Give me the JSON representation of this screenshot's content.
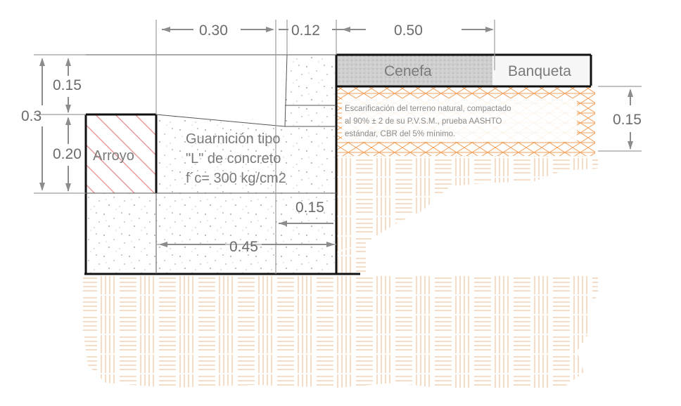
{
  "dimensions": {
    "top_left_width": "0.30",
    "top_mid_width": "0.12",
    "top_right_width": "0.50",
    "left_total_height": "0.3",
    "left_upper_height": "0.15",
    "left_lower_height": "0.20",
    "right_height": "0.15",
    "footing_offset": "0.15",
    "footing_width": "0.45"
  },
  "labels": {
    "cenefa": "Cenefa",
    "banqueta": "Banqueta",
    "arroyo": "Arroyo",
    "guarnicion_line1": "Guarnición tipo",
    "guarnicion_line2": "\"L\" de concreto",
    "guarnicion_line3": "f´c= 300 kg/cm2"
  },
  "note": {
    "line1": "Escarificación del terreno natural, compactado",
    "line2": "al 90% ± 2 de su P.V.S.M., prueba AASHTO",
    "line3": "estándar, CBR del 5% mínimo."
  },
  "colors": {
    "soil_hatch": "#f0c9a4",
    "compacted_hatch": "#f2a25e",
    "arroyo_hatch": "#e98a8a",
    "cenefa_fill": "#c8c8c8",
    "outline": "#111111",
    "dimension": "#8c8c8c"
  }
}
